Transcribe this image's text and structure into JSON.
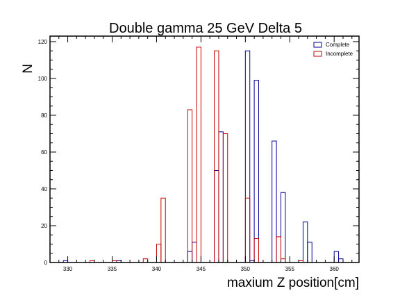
{
  "chart_data": {
    "type": "histogram",
    "title": "Double gamma 25 GeV Delta 5",
    "xlabel": "maxium Z position[cm]",
    "ylabel": "N",
    "xlim": [
      328,
      362.8
    ],
    "ylim": [
      0,
      123
    ],
    "bin_width": 0.5,
    "x_ticks": [
      330,
      335,
      340,
      345,
      350,
      355,
      360
    ],
    "y_ticks": [
      0,
      20,
      40,
      60,
      80,
      100,
      120
    ],
    "legend_position": "top-right",
    "series": [
      {
        "name": "Complete",
        "color": "#00009c",
        "bins": [
          [
            329.5,
            1
          ],
          [
            335.5,
            1
          ],
          [
            343.5,
            6
          ],
          [
            344.0,
            11
          ],
          [
            346.5,
            50
          ],
          [
            347.0,
            71
          ],
          [
            350.0,
            115
          ],
          [
            350.5,
            1
          ],
          [
            351.0,
            99
          ],
          [
            353.0,
            66
          ],
          [
            354.0,
            38
          ],
          [
            356.5,
            22
          ],
          [
            357.0,
            11
          ],
          [
            360.0,
            6
          ],
          [
            360.5,
            2
          ]
        ]
      },
      {
        "name": "Incomplete",
        "color": "#c80000",
        "bins": [
          [
            332.5,
            1
          ],
          [
            335.0,
            1
          ],
          [
            338.5,
            2
          ],
          [
            340.0,
            10
          ],
          [
            340.5,
            35
          ],
          [
            343.5,
            83
          ],
          [
            344.5,
            117
          ],
          [
            346.5,
            115
          ],
          [
            347.5,
            70
          ],
          [
            350.0,
            35
          ],
          [
            351.0,
            13
          ],
          [
            353.5,
            14
          ],
          [
            354.0,
            2
          ],
          [
            356.0,
            1
          ]
        ]
      }
    ]
  }
}
